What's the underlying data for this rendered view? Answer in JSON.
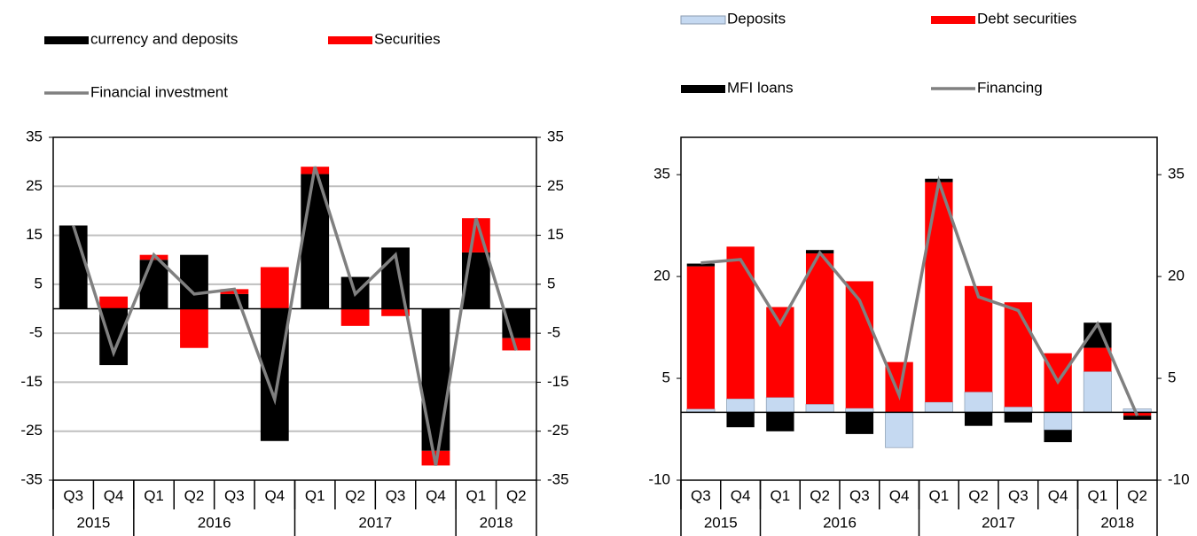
{
  "chart_data": [
    {
      "type": "bar",
      "categories": [
        "Q3",
        "Q4",
        "Q1",
        "Q2",
        "Q3",
        "Q4",
        "Q1",
        "Q2",
        "Q3",
        "Q4",
        "Q1",
        "Q2"
      ],
      "groups": [
        {
          "label": "2015",
          "start": 0,
          "end": 1
        },
        {
          "label": "2016",
          "start": 2,
          "end": 5
        },
        {
          "label": "2017",
          "start": 6,
          "end": 9
        },
        {
          "label": "2018",
          "start": 10,
          "end": 11
        }
      ],
      "series": [
        {
          "name": "currency and deposits",
          "type": "bar",
          "color": "#000000",
          "values": [
            17,
            -11.5,
            10,
            11,
            3,
            -27,
            27.5,
            6.5,
            12.5,
            -29,
            11.5,
            -6
          ]
        },
        {
          "name": "Securities",
          "type": "bar",
          "color": "#ff0000",
          "values": [
            0,
            2.5,
            1,
            -8,
            1,
            8.5,
            1.5,
            -3.5,
            -1.5,
            -3,
            7,
            -2.5
          ]
        },
        {
          "name": "Financial investment",
          "type": "line",
          "color": "#808080",
          "values": [
            17,
            -9,
            11,
            3,
            4,
            -18.5,
            29,
            3,
            11,
            -32,
            18.5,
            -8.5
          ]
        }
      ],
      "ylim": [
        -35,
        35
      ],
      "yticks": [
        -35,
        -25,
        -15,
        -5,
        5,
        15,
        25,
        35
      ],
      "y2lim": [
        -35,
        35
      ],
      "y2ticks": [
        -35,
        -25,
        -15,
        -5,
        5,
        15,
        25,
        35
      ],
      "grid": true
    },
    {
      "type": "bar",
      "categories": [
        "Q3",
        "Q4",
        "Q1",
        "Q2",
        "Q3",
        "Q4",
        "Q1",
        "Q2",
        "Q3",
        "Q4",
        "Q1",
        "Q2"
      ],
      "groups": [
        {
          "label": "2015",
          "start": 0,
          "end": 1
        },
        {
          "label": "2016",
          "start": 2,
          "end": 5
        },
        {
          "label": "2017",
          "start": 6,
          "end": 9
        },
        {
          "label": "2018",
          "start": 10,
          "end": 11
        }
      ],
      "series": [
        {
          "name": "Deposits",
          "type": "bar",
          "color": "#c5d9f1",
          "values": [
            0.5,
            2,
            2.2,
            1.2,
            0.6,
            -5.2,
            1.5,
            3,
            0.8,
            -2.6,
            6,
            0.5
          ]
        },
        {
          "name": "Debt securities",
          "type": "bar",
          "color": "#ff0000",
          "values": [
            21,
            22.4,
            13.3,
            22.2,
            18.7,
            7.4,
            32.4,
            15.6,
            15.4,
            8.7,
            3.5,
            -0.5
          ]
        },
        {
          "name": "MFI loans",
          "type": "bar",
          "color": "#000000",
          "values": [
            0.4,
            -2.2,
            -2.8,
            0.5,
            -3.2,
            0,
            0.5,
            -2,
            -1.5,
            -1.8,
            3.7,
            -0.6
          ]
        },
        {
          "name": "Financing",
          "type": "line",
          "color": "#808080",
          "values": [
            22,
            22.5,
            13,
            23.5,
            16.5,
            2.5,
            34,
            17,
            15,
            4.5,
            13,
            -0.5
          ]
        }
      ],
      "ylim": [
        -10,
        40.5
      ],
      "yticks": [
        -10,
        5,
        20,
        35
      ],
      "y2lim": [
        -10,
        40.5
      ],
      "y2ticks": [
        -10,
        5,
        20,
        35
      ],
      "grid": false
    }
  ]
}
